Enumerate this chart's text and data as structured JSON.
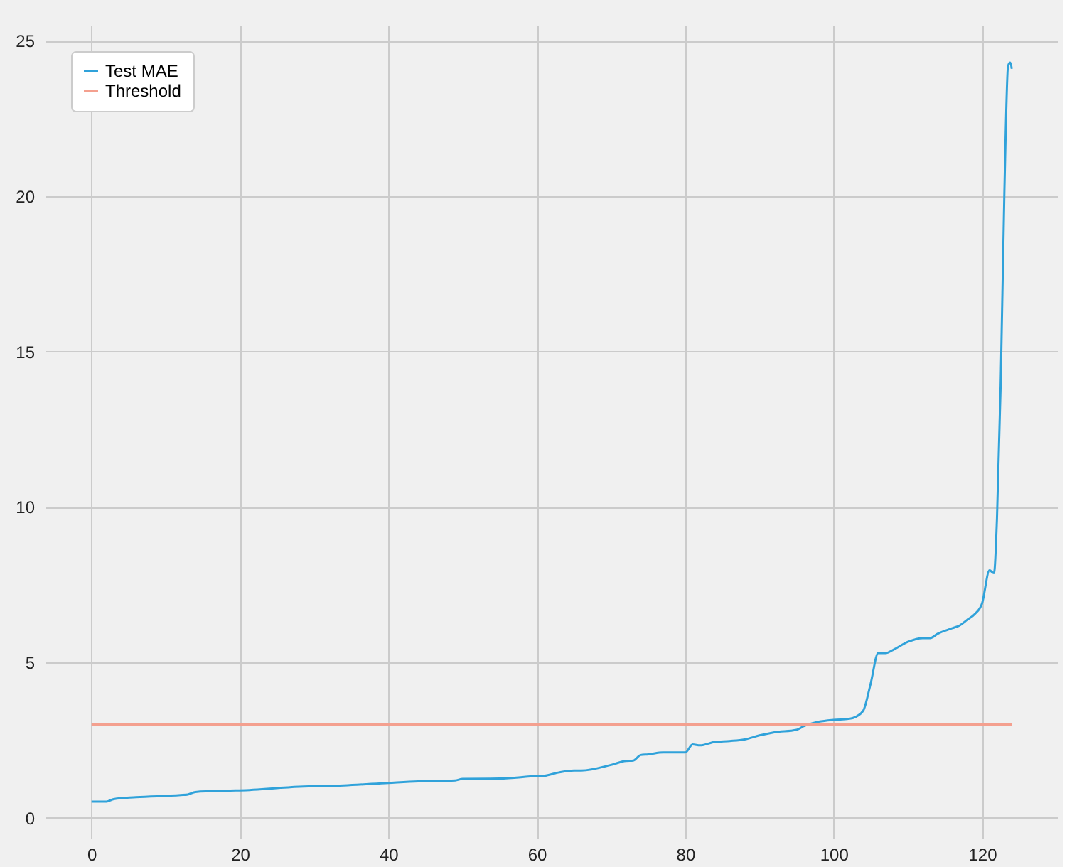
{
  "chart_data": {
    "type": "line",
    "xlim": [
      -6.2,
      130.2
    ],
    "ylim": [
      -0.67,
      25.49
    ],
    "xticks": [
      0,
      20,
      40,
      60,
      80,
      100,
      120
    ],
    "yticks": [
      0,
      5,
      10,
      15,
      20,
      25
    ],
    "grid": true,
    "legend": "top left",
    "line_style": "solid",
    "marker": "none",
    "series": [
      {
        "name": "Test MAE",
        "color": "#30a2da",
        "x": [
          0,
          2,
          3,
          6,
          12,
          13,
          14,
          18,
          20,
          28,
          34,
          40,
          44,
          49,
          50,
          55,
          60,
          61,
          63,
          65,
          66,
          70,
          72,
          73,
          74,
          75,
          77,
          80,
          81,
          82,
          84,
          86,
          88,
          90,
          92,
          95,
          96,
          98,
          100,
          102,
          103,
          104,
          105,
          106,
          107,
          108,
          110,
          112,
          113,
          114,
          116,
          117,
          118,
          119,
          120,
          121,
          121.6,
          122,
          122.5,
          123,
          123.5,
          123.8,
          124
        ],
        "values": [
          0.52,
          0.52,
          0.6,
          0.66,
          0.73,
          0.75,
          0.83,
          0.87,
          0.88,
          1.0,
          1.04,
          1.12,
          1.17,
          1.2,
          1.25,
          1.26,
          1.34,
          1.35,
          1.46,
          1.52,
          1.52,
          1.7,
          1.83,
          1.84,
          2.02,
          2.04,
          2.1,
          2.1,
          2.36,
          2.33,
          2.44,
          2.47,
          2.52,
          2.65,
          2.75,
          2.83,
          2.95,
          3.09,
          3.15,
          3.18,
          3.25,
          3.45,
          4.33,
          5.3,
          5.3,
          5.4,
          5.66,
          5.78,
          5.78,
          5.92,
          6.1,
          6.19,
          6.37,
          6.55,
          6.9,
          7.96,
          7.87,
          9.6,
          13.9,
          20.1,
          24.2,
          24.3,
          24.1
        ]
      },
      {
        "name": "Threshold",
        "color": "#f4a08f",
        "x": [
          0,
          124
        ],
        "values": [
          3,
          3
        ]
      }
    ]
  }
}
